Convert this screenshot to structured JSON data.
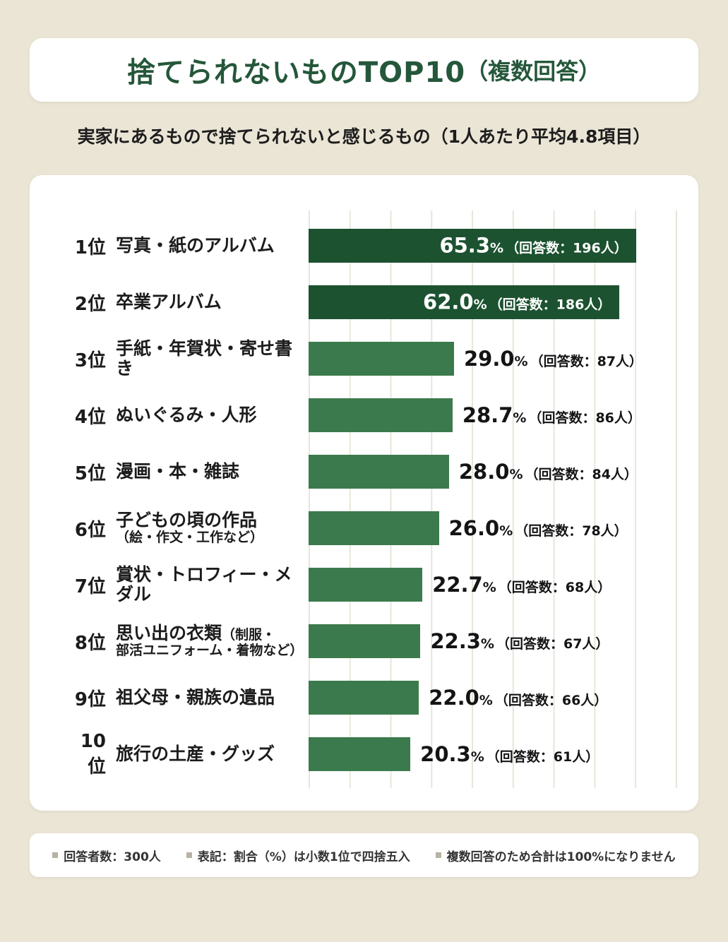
{
  "header": {
    "title_main": "捨てられないものTOP10",
    "title_paren": "（複数回答）",
    "subtitle": "実家にあるもので捨てられないと感じるもの（1人あたり平均4.8項目）"
  },
  "chart_data": {
    "type": "bar",
    "orientation": "horizontal",
    "title": "捨てられないものTOP10（複数回答）",
    "subtitle": "実家にあるもので捨てられないと感じるもの（1人あたり平均4.8項目）",
    "value_unit": "%",
    "xlim": [
      0,
      73.5
    ],
    "grid": true,
    "items": [
      {
        "rank": "1位",
        "label": "写真・紙のアルバム",
        "label_small": "",
        "label_sub": "",
        "value": 65.3,
        "value_text": "65.3",
        "count": 196,
        "count_text": "（回答数：196人）",
        "inside": true
      },
      {
        "rank": "2位",
        "label": "卒業アルバム",
        "label_small": "",
        "label_sub": "",
        "value": 62.0,
        "value_text": "62.0",
        "count": 186,
        "count_text": "（回答数：186人）",
        "inside": true
      },
      {
        "rank": "3位",
        "label": "手紙・年賀状・寄せ書き",
        "label_small": "",
        "label_sub": "",
        "value": 29.0,
        "value_text": "29.0",
        "count": 87,
        "count_text": "（回答数：87人）",
        "inside": false
      },
      {
        "rank": "4位",
        "label": "ぬいぐるみ・人形",
        "label_small": "",
        "label_sub": "",
        "value": 28.7,
        "value_text": "28.7",
        "count": 86,
        "count_text": "（回答数：86人）",
        "inside": false
      },
      {
        "rank": "5位",
        "label": "漫画・本・雑誌",
        "label_small": "",
        "label_sub": "",
        "value": 28.0,
        "value_text": "28.0",
        "count": 84,
        "count_text": "（回答数：84人）",
        "inside": false
      },
      {
        "rank": "6位",
        "label": "子どもの頃の作品",
        "label_small": "",
        "label_sub": "（絵・作文・工作など）",
        "value": 26.0,
        "value_text": "26.0",
        "count": 78,
        "count_text": "（回答数：78人）",
        "inside": false
      },
      {
        "rank": "7位",
        "label": "賞状・トロフィー・メダル",
        "label_small": "",
        "label_sub": "",
        "value": 22.7,
        "value_text": "22.7",
        "count": 68,
        "count_text": "（回答数：68人）",
        "inside": false
      },
      {
        "rank": "8位",
        "label": "思い出の衣類",
        "label_small": "（制服・",
        "label_sub": "部活ユニフォーム・着物など）",
        "value": 22.3,
        "value_text": "22.3",
        "count": 67,
        "count_text": "（回答数：67人）",
        "inside": false
      },
      {
        "rank": "9位",
        "label": "祖父母・親族の遺品",
        "label_small": "",
        "label_sub": "",
        "value": 22.0,
        "value_text": "22.0",
        "count": 66,
        "count_text": "（回答数：66人）",
        "inside": false
      },
      {
        "rank": "10位",
        "label": "旅行の土産・グッズ",
        "label_small": "",
        "label_sub": "",
        "value": 20.3,
        "value_text": "20.3",
        "count": 61,
        "count_text": "（回答数：61人）",
        "inside": false
      }
    ]
  },
  "footer": {
    "notes": [
      "回答者数：300人",
      "表記：割合（%）は小数1位で四捨五入",
      "複数回答のため合計は100%になりません"
    ]
  },
  "colors": {
    "background": "#ebe5d6",
    "card": "#ffffff",
    "title_green": "#25573a",
    "bar_dark": "#1c5230",
    "bar_medium": "#3b7a4c",
    "gridline": "#e8e5da",
    "text_dark": "#1c1c1c",
    "note_bullet": "#b7b2a3"
  }
}
